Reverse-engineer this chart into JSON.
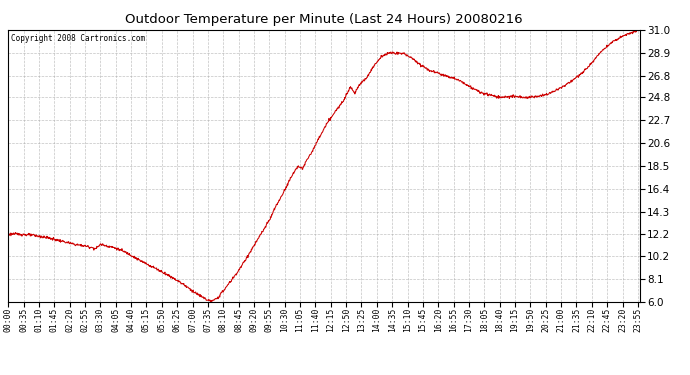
{
  "title": "Outdoor Temperature per Minute (Last 24 Hours) 20080216",
  "copyright": "Copyright 2008 Cartronics.com",
  "line_color": "#cc0000",
  "bg_color": "#ffffff",
  "plot_bg_color": "#ffffff",
  "grid_color": "#aaaaaa",
  "ylim": [
    6.0,
    31.0
  ],
  "yticks": [
    6.0,
    8.1,
    10.2,
    12.2,
    14.3,
    16.4,
    18.5,
    20.6,
    22.7,
    24.8,
    26.8,
    28.9,
    31.0
  ],
  "xtick_labels": [
    "00:00",
    "00:35",
    "01:10",
    "01:45",
    "02:20",
    "02:55",
    "03:30",
    "04:05",
    "04:40",
    "05:15",
    "05:50",
    "06:25",
    "07:00",
    "07:35",
    "08:10",
    "08:45",
    "09:20",
    "09:55",
    "10:30",
    "11:05",
    "11:40",
    "12:15",
    "12:50",
    "13:25",
    "14:00",
    "14:35",
    "15:10",
    "15:45",
    "16:20",
    "16:55",
    "17:30",
    "18:05",
    "18:40",
    "19:15",
    "19:50",
    "20:25",
    "21:00",
    "21:35",
    "22:10",
    "22:45",
    "23:20",
    "23:55"
  ],
  "key_points_x": [
    0,
    10,
    35,
    60,
    90,
    120,
    150,
    165,
    180,
    200,
    210,
    225,
    240,
    260,
    280,
    300,
    320,
    340,
    360,
    380,
    400,
    420,
    440,
    455,
    462,
    470,
    480,
    490,
    505,
    520,
    535,
    550,
    565,
    580,
    595,
    610,
    620,
    630,
    645,
    660,
    670,
    680,
    695,
    710,
    725,
    740,
    755,
    770,
    780,
    790,
    800,
    815,
    830,
    845,
    855,
    865,
    875,
    890,
    905,
    920,
    940,
    960,
    975,
    990,
    1005,
    1020,
    1040,
    1060,
    1080,
    1100,
    1110,
    1120,
    1135,
    1150,
    1165,
    1180,
    1200,
    1220,
    1235,
    1250,
    1265,
    1280,
    1300,
    1320,
    1335,
    1350,
    1365,
    1380,
    1395,
    1410,
    1425,
    1439
  ],
  "key_points_y": [
    12.2,
    12.25,
    12.2,
    12.1,
    11.9,
    11.6,
    11.3,
    11.2,
    11.1,
    10.9,
    11.3,
    11.15,
    11.0,
    10.7,
    10.3,
    9.8,
    9.4,
    9.0,
    8.55,
    8.1,
    7.6,
    7.0,
    6.5,
    6.15,
    6.05,
    6.15,
    6.5,
    7.0,
    7.8,
    8.6,
    9.5,
    10.5,
    11.5,
    12.5,
    13.5,
    14.8,
    15.5,
    16.3,
    17.5,
    18.5,
    18.2,
    19.0,
    20.0,
    21.2,
    22.3,
    23.2,
    24.0,
    25.0,
    25.8,
    25.2,
    26.0,
    26.5,
    27.5,
    28.3,
    28.7,
    28.85,
    28.9,
    28.85,
    28.8,
    28.4,
    27.8,
    27.3,
    27.1,
    26.9,
    26.7,
    26.5,
    26.1,
    25.6,
    25.2,
    25.0,
    24.9,
    24.8,
    24.85,
    24.9,
    24.85,
    24.8,
    24.85,
    25.0,
    25.2,
    25.5,
    25.8,
    26.2,
    26.8,
    27.5,
    28.2,
    29.0,
    29.5,
    30.0,
    30.3,
    30.6,
    30.8,
    31.0
  ]
}
